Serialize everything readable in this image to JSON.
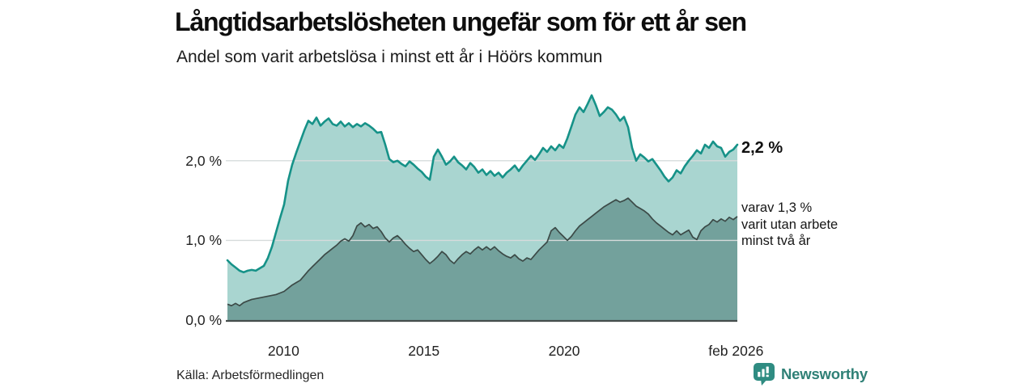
{
  "header": {
    "title": "Långtidsarbetslösheten ungefär som för ett år sen",
    "subtitle": "Andel som varit arbetslösa i minst ett år i Höörs kommun"
  },
  "footer": {
    "source": "Källa: Arbetsförmedlingen",
    "brand": "Newsworthy",
    "brand_color": "#2f8076"
  },
  "chart_data": {
    "type": "area",
    "title": "Långtidsarbetslösheten ungefär som för ett år sen",
    "subtitle": "Andel som varit arbetslösa i minst ett år i Höörs kommun",
    "unit": "%",
    "xlim": [
      2008.0,
      2026.17
    ],
    "ylim": [
      0,
      2.9
    ],
    "grid": "horizontal",
    "legend": "inline-annotations-right",
    "y_ticks": [
      {
        "label": "2,0 %",
        "value": 2.0
      },
      {
        "label": "1,0 %",
        "value": 1.0
      },
      {
        "label": "0,0 %",
        "value": 0.0
      }
    ],
    "x_ticks": [
      {
        "label": "2010",
        "year": 2010
      },
      {
        "label": "2015",
        "year": 2015
      },
      {
        "label": "2020",
        "year": 2020
      },
      {
        "label": "feb 2026",
        "year": 2026.12
      }
    ],
    "colors": {
      "grid": "#d6dbdb",
      "axis": "#454d4c"
    },
    "series": [
      {
        "name": "Andel arbetslösa minst ett år",
        "latest_value": 2.2,
        "line_color": "#169288",
        "fill_color": "#a9d5d0",
        "values": [
          0.75,
          0.7,
          0.66,
          0.62,
          0.6,
          0.62,
          0.63,
          0.62,
          0.65,
          0.68,
          0.78,
          0.92,
          1.1,
          1.28,
          1.45,
          1.75,
          1.95,
          2.1,
          2.24,
          2.38,
          2.5,
          2.46,
          2.54,
          2.44,
          2.49,
          2.53,
          2.46,
          2.44,
          2.49,
          2.43,
          2.47,
          2.42,
          2.46,
          2.43,
          2.47,
          2.44,
          2.4,
          2.35,
          2.36,
          2.2,
          2.02,
          1.98,
          2.0,
          1.96,
          1.93,
          1.99,
          1.95,
          1.9,
          1.86,
          1.8,
          1.76,
          2.05,
          2.14,
          2.05,
          1.95,
          1.99,
          2.05,
          1.98,
          1.94,
          1.89,
          1.97,
          1.92,
          1.85,
          1.89,
          1.82,
          1.87,
          1.81,
          1.85,
          1.79,
          1.85,
          1.89,
          1.94,
          1.87,
          1.94,
          2.0,
          2.06,
          2.01,
          2.08,
          2.16,
          2.11,
          2.18,
          2.13,
          2.2,
          2.16,
          2.28,
          2.43,
          2.58,
          2.67,
          2.61,
          2.71,
          2.82,
          2.7,
          2.56,
          2.61,
          2.67,
          2.64,
          2.58,
          2.5,
          2.55,
          2.42,
          2.16,
          2.0,
          2.08,
          2.04,
          1.99,
          2.02,
          1.95,
          1.88,
          1.8,
          1.74,
          1.79,
          1.88,
          1.84,
          1.93,
          2.0,
          2.06,
          2.13,
          2.09,
          2.2,
          2.16,
          2.24,
          2.18,
          2.16,
          2.05,
          2.11,
          2.14,
          2.2
        ]
      },
      {
        "name": "varav utan arbete minst två år",
        "latest_value": 1.3,
        "line_color": "#3c4a47",
        "fill_color": "#73a19c",
        "values": [
          0.2,
          0.18,
          0.21,
          0.18,
          0.22,
          0.24,
          0.26,
          0.27,
          0.28,
          0.29,
          0.3,
          0.31,
          0.32,
          0.34,
          0.36,
          0.4,
          0.44,
          0.47,
          0.5,
          0.56,
          0.62,
          0.67,
          0.72,
          0.77,
          0.82,
          0.86,
          0.9,
          0.94,
          0.99,
          1.02,
          0.99,
          1.06,
          1.18,
          1.22,
          1.17,
          1.2,
          1.15,
          1.17,
          1.11,
          1.03,
          0.98,
          1.03,
          1.06,
          1.01,
          0.95,
          0.9,
          0.86,
          0.88,
          0.82,
          0.76,
          0.71,
          0.75,
          0.8,
          0.86,
          0.82,
          0.75,
          0.71,
          0.77,
          0.82,
          0.86,
          0.83,
          0.88,
          0.92,
          0.88,
          0.92,
          0.88,
          0.92,
          0.87,
          0.83,
          0.8,
          0.78,
          0.82,
          0.77,
          0.74,
          0.78,
          0.76,
          0.82,
          0.88,
          0.93,
          0.98,
          1.12,
          1.16,
          1.1,
          1.05,
          1.0,
          1.05,
          1.12,
          1.18,
          1.22,
          1.26,
          1.3,
          1.34,
          1.38,
          1.42,
          1.45,
          1.48,
          1.51,
          1.48,
          1.5,
          1.53,
          1.48,
          1.43,
          1.4,
          1.37,
          1.33,
          1.27,
          1.22,
          1.18,
          1.14,
          1.1,
          1.07,
          1.12,
          1.07,
          1.1,
          1.13,
          1.04,
          1.01,
          1.12,
          1.17,
          1.2,
          1.26,
          1.23,
          1.27,
          1.24,
          1.29,
          1.26,
          1.3
        ]
      }
    ],
    "annotations": {
      "total_label": "2,2 %",
      "two_year_label": "varav 1,3 %\nvarit utan arbete\nminst två år"
    }
  }
}
